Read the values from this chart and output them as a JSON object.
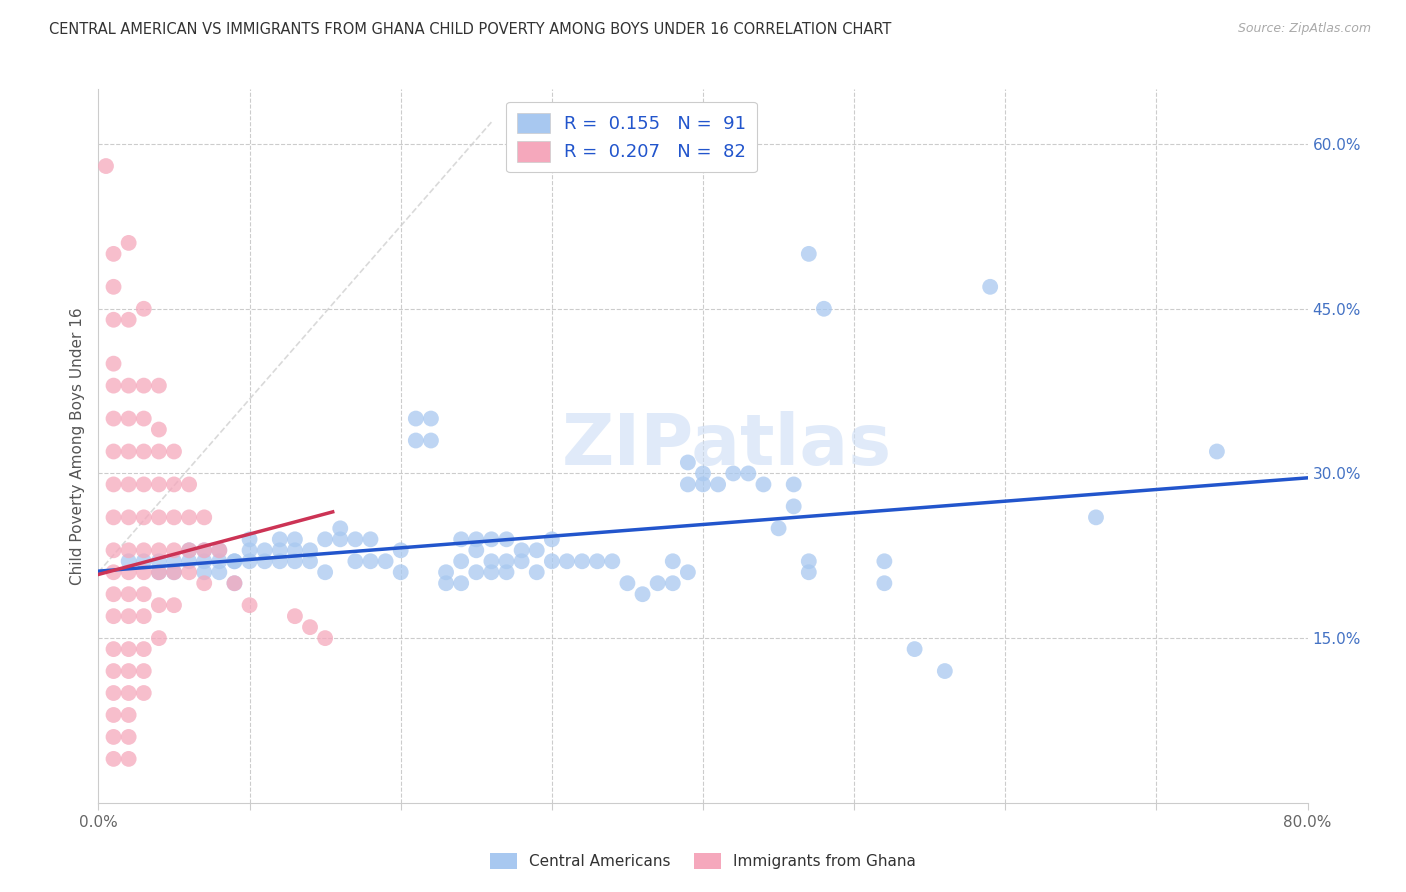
{
  "title": "CENTRAL AMERICAN VS IMMIGRANTS FROM GHANA CHILD POVERTY AMONG BOYS UNDER 16 CORRELATION CHART",
  "source": "Source: ZipAtlas.com",
  "ylabel": "Child Poverty Among Boys Under 16",
  "xlim": [
    0,
    0.8
  ],
  "ylim": [
    0,
    0.65
  ],
  "xtick_positions": [
    0.0,
    0.1,
    0.2,
    0.3,
    0.4,
    0.5,
    0.6,
    0.7,
    0.8
  ],
  "xticklabels": [
    "0.0%",
    "",
    "",
    "",
    "",
    "",
    "",
    "",
    "80.0%"
  ],
  "yticks_right": [
    0.0,
    0.15,
    0.3,
    0.45,
    0.6
  ],
  "ytick_right_labels": [
    "",
    "15.0%",
    "30.0%",
    "45.0%",
    "60.0%"
  ],
  "r_blue": 0.155,
  "n_blue": 91,
  "r_pink": 0.207,
  "n_pink": 82,
  "blue_color": "#a8c8f0",
  "pink_color": "#f5a8bc",
  "blue_line_color": "#2255cc",
  "pink_line_color": "#cc3355",
  "diagonal_color": "#d0d0d0",
  "watermark": "ZIPatlas",
  "legend_blue_label": "Central Americans",
  "legend_pink_label": "Immigrants from Ghana",
  "blue_scatter": [
    [
      0.02,
      0.22
    ],
    [
      0.03,
      0.22
    ],
    [
      0.04,
      0.22
    ],
    [
      0.04,
      0.21
    ],
    [
      0.05,
      0.22
    ],
    [
      0.05,
      0.21
    ],
    [
      0.06,
      0.22
    ],
    [
      0.06,
      0.23
    ],
    [
      0.07,
      0.22
    ],
    [
      0.07,
      0.21
    ],
    [
      0.07,
      0.23
    ],
    [
      0.08,
      0.22
    ],
    [
      0.08,
      0.21
    ],
    [
      0.08,
      0.23
    ],
    [
      0.09,
      0.22
    ],
    [
      0.09,
      0.2
    ],
    [
      0.09,
      0.22
    ],
    [
      0.1,
      0.22
    ],
    [
      0.1,
      0.23
    ],
    [
      0.1,
      0.24
    ],
    [
      0.11,
      0.22
    ],
    [
      0.11,
      0.23
    ],
    [
      0.12,
      0.22
    ],
    [
      0.12,
      0.23
    ],
    [
      0.12,
      0.24
    ],
    [
      0.13,
      0.22
    ],
    [
      0.13,
      0.23
    ],
    [
      0.13,
      0.24
    ],
    [
      0.14,
      0.22
    ],
    [
      0.14,
      0.23
    ],
    [
      0.15,
      0.21
    ],
    [
      0.15,
      0.24
    ],
    [
      0.16,
      0.24
    ],
    [
      0.16,
      0.25
    ],
    [
      0.17,
      0.22
    ],
    [
      0.17,
      0.24
    ],
    [
      0.18,
      0.22
    ],
    [
      0.18,
      0.24
    ],
    [
      0.19,
      0.22
    ],
    [
      0.2,
      0.21
    ],
    [
      0.2,
      0.23
    ],
    [
      0.21,
      0.33
    ],
    [
      0.21,
      0.35
    ],
    [
      0.22,
      0.33
    ],
    [
      0.22,
      0.35
    ],
    [
      0.23,
      0.2
    ],
    [
      0.23,
      0.21
    ],
    [
      0.24,
      0.2
    ],
    [
      0.24,
      0.22
    ],
    [
      0.24,
      0.24
    ],
    [
      0.25,
      0.21
    ],
    [
      0.25,
      0.23
    ],
    [
      0.25,
      0.24
    ],
    [
      0.26,
      0.21
    ],
    [
      0.26,
      0.22
    ],
    [
      0.26,
      0.24
    ],
    [
      0.27,
      0.21
    ],
    [
      0.27,
      0.22
    ],
    [
      0.27,
      0.24
    ],
    [
      0.28,
      0.22
    ],
    [
      0.28,
      0.23
    ],
    [
      0.29,
      0.21
    ],
    [
      0.29,
      0.23
    ],
    [
      0.3,
      0.22
    ],
    [
      0.3,
      0.24
    ],
    [
      0.31,
      0.22
    ],
    [
      0.32,
      0.22
    ],
    [
      0.33,
      0.22
    ],
    [
      0.34,
      0.22
    ],
    [
      0.35,
      0.2
    ],
    [
      0.36,
      0.19
    ],
    [
      0.37,
      0.2
    ],
    [
      0.38,
      0.2
    ],
    [
      0.38,
      0.22
    ],
    [
      0.39,
      0.21
    ],
    [
      0.39,
      0.29
    ],
    [
      0.39,
      0.31
    ],
    [
      0.4,
      0.3
    ],
    [
      0.4,
      0.29
    ],
    [
      0.41,
      0.29
    ],
    [
      0.42,
      0.3
    ],
    [
      0.43,
      0.3
    ],
    [
      0.44,
      0.29
    ],
    [
      0.45,
      0.25
    ],
    [
      0.46,
      0.27
    ],
    [
      0.46,
      0.29
    ],
    [
      0.47,
      0.22
    ],
    [
      0.47,
      0.21
    ],
    [
      0.47,
      0.5
    ],
    [
      0.48,
      0.45
    ],
    [
      0.52,
      0.22
    ],
    [
      0.52,
      0.2
    ],
    [
      0.54,
      0.14
    ],
    [
      0.56,
      0.12
    ],
    [
      0.59,
      0.47
    ],
    [
      0.66,
      0.26
    ],
    [
      0.74,
      0.32
    ]
  ],
  "pink_scatter": [
    [
      0.005,
      0.58
    ],
    [
      0.01,
      0.5
    ],
    [
      0.01,
      0.47
    ],
    [
      0.01,
      0.44
    ],
    [
      0.01,
      0.4
    ],
    [
      0.01,
      0.38
    ],
    [
      0.01,
      0.35
    ],
    [
      0.01,
      0.32
    ],
    [
      0.01,
      0.29
    ],
    [
      0.01,
      0.26
    ],
    [
      0.01,
      0.23
    ],
    [
      0.01,
      0.21
    ],
    [
      0.01,
      0.19
    ],
    [
      0.01,
      0.17
    ],
    [
      0.01,
      0.14
    ],
    [
      0.01,
      0.12
    ],
    [
      0.01,
      0.1
    ],
    [
      0.01,
      0.08
    ],
    [
      0.01,
      0.06
    ],
    [
      0.01,
      0.04
    ],
    [
      0.02,
      0.51
    ],
    [
      0.02,
      0.44
    ],
    [
      0.02,
      0.38
    ],
    [
      0.02,
      0.35
    ],
    [
      0.02,
      0.32
    ],
    [
      0.02,
      0.29
    ],
    [
      0.02,
      0.26
    ],
    [
      0.02,
      0.23
    ],
    [
      0.02,
      0.21
    ],
    [
      0.02,
      0.19
    ],
    [
      0.02,
      0.17
    ],
    [
      0.02,
      0.14
    ],
    [
      0.02,
      0.12
    ],
    [
      0.02,
      0.1
    ],
    [
      0.02,
      0.08
    ],
    [
      0.02,
      0.06
    ],
    [
      0.02,
      0.04
    ],
    [
      0.03,
      0.45
    ],
    [
      0.03,
      0.38
    ],
    [
      0.03,
      0.35
    ],
    [
      0.03,
      0.32
    ],
    [
      0.03,
      0.29
    ],
    [
      0.03,
      0.26
    ],
    [
      0.03,
      0.23
    ],
    [
      0.03,
      0.21
    ],
    [
      0.03,
      0.19
    ],
    [
      0.03,
      0.17
    ],
    [
      0.03,
      0.14
    ],
    [
      0.03,
      0.12
    ],
    [
      0.03,
      0.1
    ],
    [
      0.04,
      0.38
    ],
    [
      0.04,
      0.34
    ],
    [
      0.04,
      0.32
    ],
    [
      0.04,
      0.29
    ],
    [
      0.04,
      0.26
    ],
    [
      0.04,
      0.23
    ],
    [
      0.04,
      0.21
    ],
    [
      0.04,
      0.18
    ],
    [
      0.04,
      0.15
    ],
    [
      0.05,
      0.32
    ],
    [
      0.05,
      0.29
    ],
    [
      0.05,
      0.26
    ],
    [
      0.05,
      0.23
    ],
    [
      0.05,
      0.21
    ],
    [
      0.05,
      0.18
    ],
    [
      0.06,
      0.29
    ],
    [
      0.06,
      0.26
    ],
    [
      0.06,
      0.23
    ],
    [
      0.06,
      0.21
    ],
    [
      0.07,
      0.26
    ],
    [
      0.07,
      0.23
    ],
    [
      0.07,
      0.2
    ],
    [
      0.08,
      0.23
    ],
    [
      0.09,
      0.2
    ],
    [
      0.1,
      0.18
    ],
    [
      0.13,
      0.17
    ],
    [
      0.14,
      0.16
    ],
    [
      0.15,
      0.15
    ]
  ]
}
